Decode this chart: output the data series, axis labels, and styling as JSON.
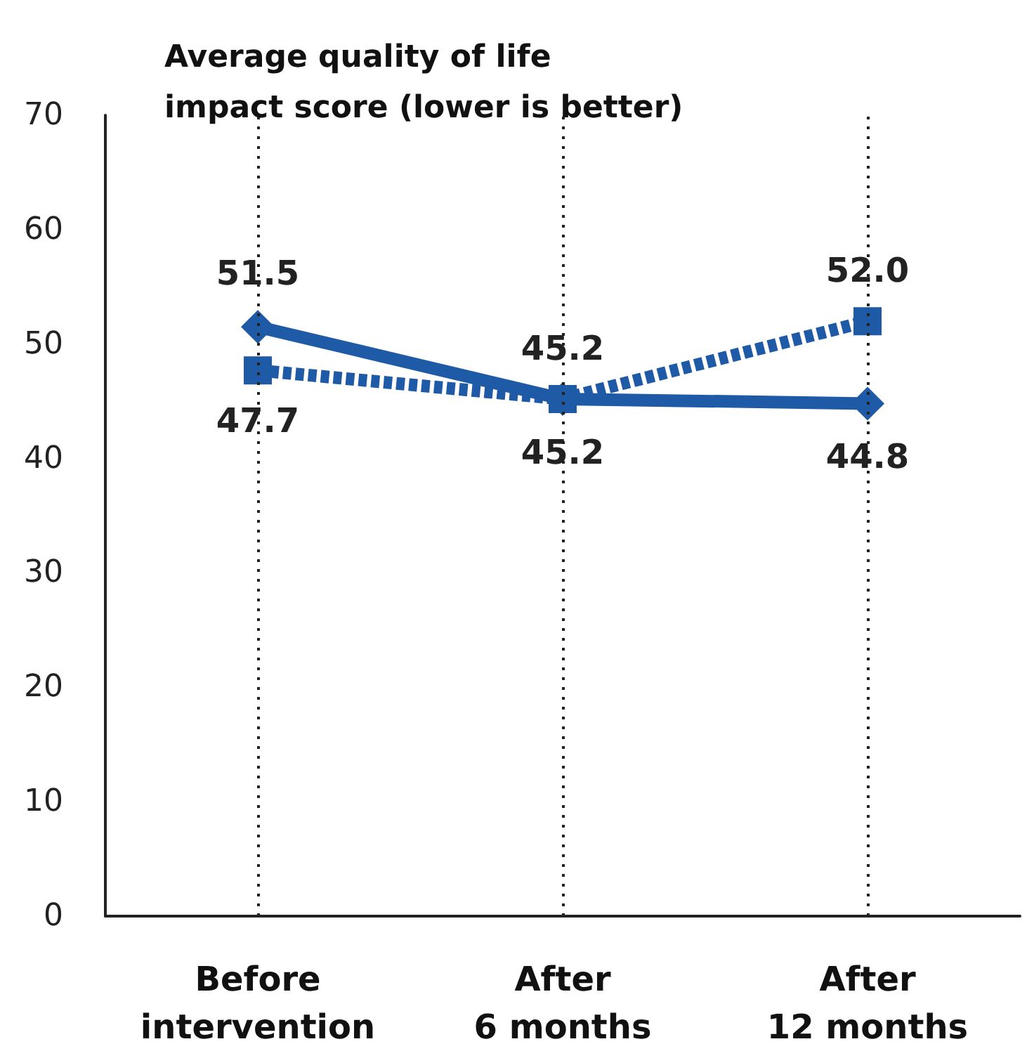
{
  "chart_data": {
    "type": "line",
    "title": "Average quality of life\nimpact score (lower is better)",
    "categories": [
      "Before\nintervention",
      "After\n6 months",
      "After\n12 months"
    ],
    "series": [
      {
        "color": "#1f5aa6",
        "values": [
          51.5,
          45.2,
          44.8
        ],
        "value_labels": [
          "51.5",
          "45.2",
          "44.8"
        ],
        "marker": "diamond",
        "line_style": "solid"
      },
      {
        "color": "#1f5aa6",
        "values": [
          47.7,
          45.2,
          52.0
        ],
        "value_labels": [
          "47.7",
          "45.2",
          "52.0"
        ],
        "marker": "square",
        "line_style": "dashed"
      }
    ],
    "ylim": [
      0,
      70
    ],
    "yticks": [
      0,
      10,
      20,
      30,
      40,
      50,
      60,
      70
    ],
    "grid": "x"
  }
}
